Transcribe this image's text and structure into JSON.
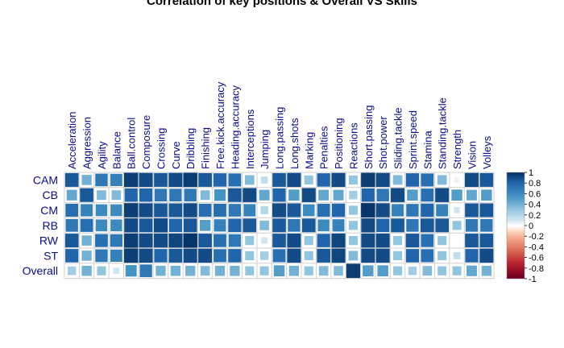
{
  "chart_data": {
    "type": "heatmap",
    "title": "Correlation of key positions & Overall VS Skills",
    "columns": [
      "Acceleration",
      "Aggression",
      "Agility",
      "Balance",
      "Ball.control",
      "Composure",
      "Crossing",
      "Curve",
      "Dribbling",
      "Finishing",
      "Free.kick.accuracy",
      "Heading.accuracy",
      "Interceptions",
      "Jumping",
      "Long.passing",
      "Long.shots",
      "Marking",
      "Penalties",
      "Positioning",
      "Reactions",
      "Short.passing",
      "Shot.power",
      "Sliding.tackle",
      "Sprint.speed",
      "Stamina",
      "Standing.tackle",
      "Strength",
      "Vision",
      "Volleys"
    ],
    "rows": [
      "CAM",
      "CB",
      "CM",
      "RB",
      "RW",
      "ST",
      "Overall"
    ],
    "values": [
      [
        0.85,
        0.4,
        0.7,
        0.65,
        0.95,
        0.9,
        0.85,
        0.9,
        0.95,
        0.85,
        0.8,
        0.75,
        0.35,
        0.15,
        0.85,
        0.9,
        0.3,
        0.8,
        0.9,
        0.3,
        0.95,
        0.9,
        0.35,
        0.8,
        0.75,
        0.35,
        0.05,
        0.9,
        0.85
      ],
      [
        0.45,
        0.85,
        0.35,
        0.35,
        0.8,
        0.8,
        0.7,
        0.7,
        0.7,
        0.35,
        0.55,
        0.85,
        0.9,
        0.45,
        0.8,
        0.5,
        0.9,
        0.45,
        0.45,
        0.25,
        0.8,
        0.7,
        0.9,
        0.5,
        0.75,
        0.9,
        0.5,
        0.45,
        0.5
      ],
      [
        0.75,
        0.65,
        0.6,
        0.6,
        0.95,
        0.9,
        0.85,
        0.85,
        0.9,
        0.75,
        0.75,
        0.7,
        0.65,
        0.2,
        0.9,
        0.85,
        0.6,
        0.75,
        0.8,
        0.3,
        0.98,
        0.9,
        0.65,
        0.7,
        0.8,
        0.65,
        0.1,
        0.85,
        0.85
      ],
      [
        0.7,
        0.75,
        0.6,
        0.6,
        0.9,
        0.85,
        0.9,
        0.8,
        0.85,
        0.5,
        0.65,
        0.8,
        0.85,
        0.35,
        0.85,
        0.7,
        0.85,
        0.6,
        0.65,
        0.3,
        0.9,
        0.8,
        0.85,
        0.7,
        0.85,
        0.85,
        0.3,
        0.7,
        0.7
      ],
      [
        0.85,
        0.4,
        0.75,
        0.7,
        0.95,
        0.9,
        0.9,
        0.92,
        0.98,
        0.85,
        0.75,
        0.7,
        0.3,
        0.1,
        0.85,
        0.9,
        0.3,
        0.8,
        0.92,
        0.3,
        0.9,
        0.9,
        0.3,
        0.85,
        0.75,
        0.3,
        0.0,
        0.85,
        0.85
      ],
      [
        0.8,
        0.4,
        0.7,
        0.65,
        0.95,
        0.9,
        0.8,
        0.85,
        0.9,
        0.9,
        0.75,
        0.8,
        0.3,
        0.25,
        0.75,
        0.9,
        0.3,
        0.85,
        0.92,
        0.35,
        0.9,
        0.9,
        0.3,
        0.8,
        0.75,
        0.3,
        0.15,
        0.8,
        0.9
      ],
      [
        0.25,
        0.4,
        0.3,
        0.1,
        0.55,
        0.7,
        0.4,
        0.4,
        0.4,
        0.35,
        0.4,
        0.4,
        0.3,
        0.3,
        0.5,
        0.4,
        0.3,
        0.35,
        0.35,
        0.95,
        0.5,
        0.5,
        0.3,
        0.25,
        0.35,
        0.3,
        0.3,
        0.45,
        0.4
      ]
    ],
    "legend": {
      "range": [
        -1,
        1
      ],
      "ticks": [
        "1",
        "0.8",
        "0.6",
        "0.4",
        "0.2",
        "0",
        "-0.2",
        "-0.4",
        "-0.6",
        "-0.8",
        "-1"
      ],
      "placement": "right"
    },
    "colors": {
      "negative": "#67001f",
      "zero": "#ffffff",
      "positive": "#053061",
      "grid": "#d0d0d0"
    }
  }
}
